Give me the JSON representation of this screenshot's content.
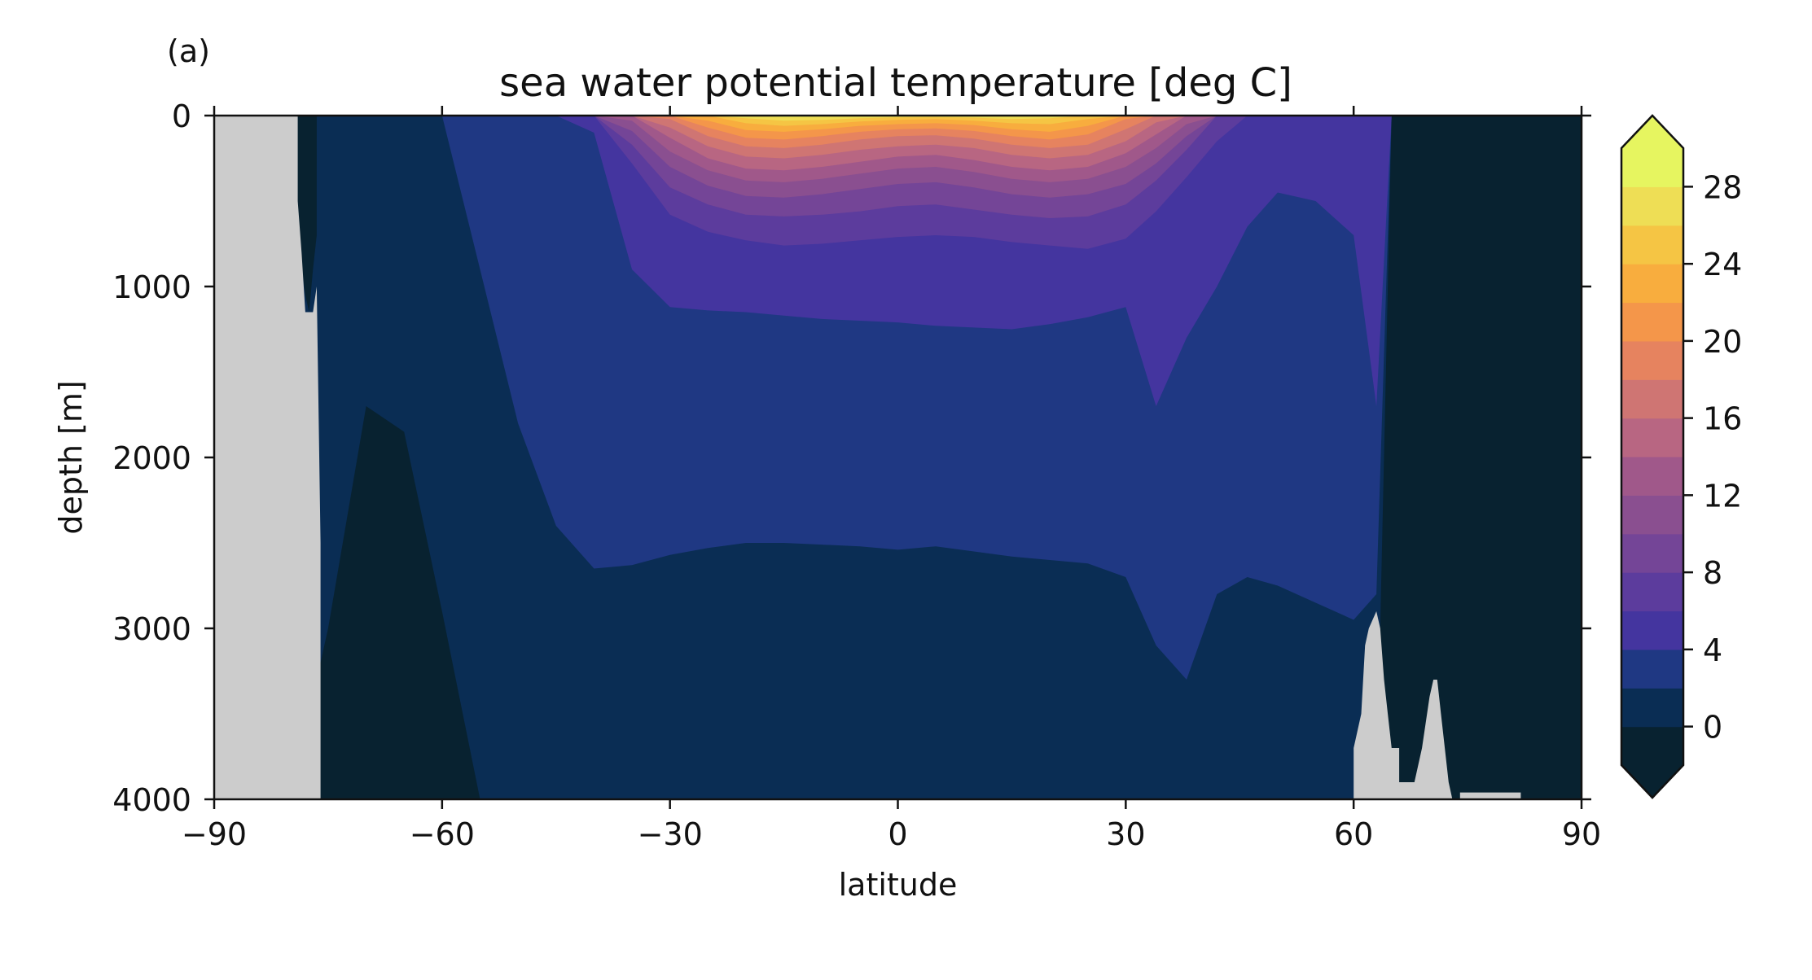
{
  "chart_data": {
    "type": "heatmap",
    "panel_label": "(a)",
    "title": "sea water potential temperature [deg C]",
    "xlabel": "latitude",
    "ylabel": "depth [m]",
    "xlim": [
      -90,
      90
    ],
    "ylim": [
      4000,
      0
    ],
    "x_ticks": [
      -90,
      -60,
      -30,
      0,
      30,
      60,
      90
    ],
    "x_tick_labels": [
      "−90",
      "−60",
      "−30",
      "0",
      "30",
      "60",
      "90"
    ],
    "y_ticks": [
      0,
      1000,
      2000,
      3000,
      4000
    ],
    "y_tick_labels": [
      "0",
      "1000",
      "2000",
      "3000",
      "4000"
    ],
    "colorbar": {
      "levels": [
        -2,
        0,
        2,
        4,
        6,
        8,
        10,
        12,
        14,
        16,
        18,
        20,
        22,
        24,
        26,
        28,
        30
      ],
      "tick_values": [
        0,
        4,
        8,
        12,
        16,
        20,
        24,
        28
      ],
      "tick_labels": [
        "0",
        "4",
        "8",
        "12",
        "16",
        "20",
        "24",
        "28"
      ],
      "extend": "both",
      "under_color": "#082230",
      "over_color": "#e6f560",
      "colors": [
        "#082230",
        "#0a2d54",
        "#1f3883",
        "#44359f",
        "#5c3c9d",
        "#744597",
        "#8a4f90",
        "#a0588a",
        "#b86682",
        "#cf7573",
        "#e6835f",
        "#f4964a",
        "#f8ad3e",
        "#f5c544",
        "#eede55",
        "#e6f560"
      ]
    },
    "land_color": "#cccccc",
    "isotherm_depth_profiles": {
      "lat": [
        -90,
        -80,
        -75,
        -70,
        -65,
        -60,
        -55,
        -50,
        -45,
        -40,
        -35,
        -30,
        -25,
        -20,
        -15,
        -10,
        -5,
        0,
        5,
        10,
        15,
        20,
        25,
        30,
        34,
        38,
        42,
        46,
        50,
        55,
        60,
        63,
        65,
        70,
        75,
        80,
        85,
        90
      ],
      "t0": [
        4000,
        4000,
        3000,
        1700,
        1850,
        2900,
        4000,
        4000,
        4000,
        4000,
        4000,
        4000,
        4000,
        4000,
        4000,
        4000,
        4000,
        4000,
        4000,
        4000,
        4000,
        4000,
        4000,
        4000,
        4000,
        4000,
        4000,
        4000,
        4000,
        4000,
        4000,
        4000,
        0,
        0,
        0,
        0,
        0,
        0
      ],
      "t2": [
        0,
        0,
        0,
        0,
        0,
        0,
        900,
        1800,
        2400,
        2650,
        2630,
        2570,
        2530,
        2500,
        2500,
        2510,
        2520,
        2540,
        2520,
        2550,
        2580,
        2600,
        2620,
        2700,
        3100,
        3300,
        2800,
        2700,
        2750,
        2850,
        2950,
        2800,
        0,
        0,
        0,
        0,
        0,
        0
      ],
      "t4": [
        0,
        0,
        0,
        0,
        0,
        0,
        0,
        0,
        0,
        100,
        900,
        1120,
        1140,
        1150,
        1170,
        1190,
        1200,
        1210,
        1230,
        1240,
        1250,
        1220,
        1180,
        1120,
        1700,
        1300,
        1000,
        650,
        450,
        500,
        700,
        1700,
        0,
        0,
        0,
        0,
        0,
        0
      ],
      "t6": [
        0,
        0,
        0,
        0,
        0,
        0,
        0,
        0,
        0,
        0,
        280,
        580,
        680,
        730,
        760,
        750,
        730,
        710,
        700,
        710,
        740,
        760,
        780,
        720,
        560,
        360,
        150,
        0,
        0,
        0,
        0,
        0,
        0,
        0,
        0,
        0,
        0,
        0
      ],
      "t8": [
        0,
        0,
        0,
        0,
        0,
        0,
        0,
        0,
        0,
        0,
        170,
        420,
        520,
        580,
        590,
        580,
        560,
        530,
        520,
        550,
        580,
        600,
        590,
        520,
        380,
        200,
        0,
        0,
        0,
        0,
        0,
        0,
        0,
        0,
        0,
        0,
        0,
        0
      ],
      "t10": [
        0,
        0,
        0,
        0,
        0,
        0,
        0,
        0,
        0,
        0,
        90,
        300,
        410,
        470,
        480,
        460,
        430,
        400,
        390,
        420,
        460,
        480,
        460,
        400,
        280,
        120,
        0,
        0,
        0,
        0,
        0,
        0,
        0,
        0,
        0,
        0,
        0,
        0
      ],
      "t12": [
        0,
        0,
        0,
        0,
        0,
        0,
        0,
        0,
        0,
        0,
        30,
        210,
        320,
        380,
        390,
        370,
        340,
        310,
        300,
        330,
        370,
        390,
        370,
        300,
        190,
        50,
        0,
        0,
        0,
        0,
        0,
        0,
        0,
        0,
        0,
        0,
        0,
        0
      ],
      "t14": [
        0,
        0,
        0,
        0,
        0,
        0,
        0,
        0,
        0,
        0,
        0,
        130,
        250,
        310,
        320,
        300,
        270,
        240,
        230,
        260,
        300,
        320,
        300,
        220,
        110,
        0,
        0,
        0,
        0,
        0,
        0,
        0,
        0,
        0,
        0,
        0,
        0,
        0
      ],
      "t16": [
        0,
        0,
        0,
        0,
        0,
        0,
        0,
        0,
        0,
        0,
        0,
        70,
        180,
        240,
        250,
        230,
        200,
        180,
        170,
        190,
        230,
        250,
        230,
        150,
        40,
        0,
        0,
        0,
        0,
        0,
        0,
        0,
        0,
        0,
        0,
        0,
        0,
        0
      ],
      "t18": [
        0,
        0,
        0,
        0,
        0,
        0,
        0,
        0,
        0,
        0,
        0,
        20,
        120,
        180,
        190,
        170,
        140,
        120,
        115,
        135,
        170,
        190,
        170,
        80,
        0,
        0,
        0,
        0,
        0,
        0,
        0,
        0,
        0,
        0,
        0,
        0,
        0,
        0
      ],
      "t20": [
        0,
        0,
        0,
        0,
        0,
        0,
        0,
        0,
        0,
        0,
        0,
        0,
        70,
        130,
        140,
        120,
        95,
        80,
        75,
        90,
        120,
        140,
        110,
        20,
        0,
        0,
        0,
        0,
        0,
        0,
        0,
        0,
        0,
        0,
        0,
        0,
        0,
        0
      ],
      "t22": [
        0,
        0,
        0,
        0,
        0,
        0,
        0,
        0,
        0,
        0,
        0,
        0,
        30,
        85,
        95,
        80,
        60,
        50,
        45,
        55,
        80,
        95,
        60,
        0,
        0,
        0,
        0,
        0,
        0,
        0,
        0,
        0,
        0,
        0,
        0,
        0,
        0,
        0
      ],
      "t24": [
        0,
        0,
        0,
        0,
        0,
        0,
        0,
        0,
        0,
        0,
        0,
        0,
        0,
        45,
        60,
        50,
        35,
        25,
        20,
        30,
        45,
        50,
        20,
        0,
        0,
        0,
        0,
        0,
        0,
        0,
        0,
        0,
        0,
        0,
        0,
        0,
        0,
        0
      ],
      "t26": [
        0,
        0,
        0,
        0,
        0,
        0,
        0,
        0,
        0,
        0,
        0,
        0,
        0,
        15,
        30,
        25,
        15,
        10,
        8,
        12,
        20,
        15,
        0,
        0,
        0,
        0,
        0,
        0,
        0,
        0,
        0,
        0,
        0,
        0,
        0,
        0,
        0,
        0
      ],
      "t28": [
        0,
        0,
        0,
        0,
        0,
        0,
        0,
        0,
        0,
        0,
        0,
        0,
        0,
        0,
        8,
        6,
        3,
        2,
        2,
        3,
        5,
        0,
        0,
        0,
        0,
        0,
        0,
        0,
        0,
        0,
        0,
        0,
        0,
        0,
        0,
        0,
        0,
        0
      ]
    },
    "antarctic_shelf_dark": {
      "lat": [
        -80,
        -79,
        -78,
        -77.5,
        -77,
        -76.5
      ],
      "depth": [
        580,
        700,
        1050,
        1150,
        900,
        700
      ]
    },
    "land_regions": [
      {
        "name": "antarctica",
        "lat": [
          -90,
          -79,
          -79,
          -78.5,
          -78,
          -77,
          -76.5,
          -76,
          -76,
          -90
        ],
        "depth": [
          0,
          0,
          500,
          800,
          1150,
          1150,
          1000,
          2500,
          4000,
          4000
        ]
      },
      {
        "name": "greenland-iceland-ridge",
        "lat": [
          60,
          60,
          61,
          61.5,
          62,
          63,
          63.5,
          64,
          64.5,
          65,
          66,
          66,
          67,
          68,
          69,
          70,
          70.5,
          71,
          71.5,
          72,
          72.5,
          73,
          74,
          74
        ],
        "depth": [
          4000,
          3700,
          3500,
          3100,
          3000,
          2900,
          3000,
          3300,
          3500,
          3700,
          3700,
          3900,
          3900,
          3900,
          3700,
          3400,
          3300,
          3300,
          3500,
          3700,
          3900,
          4000,
          4000,
          4000
        ]
      },
      {
        "name": "arctic-sill",
        "lat": [
          74,
          74,
          82,
          82
        ],
        "depth": [
          4000,
          3960,
          3960,
          4000
        ]
      }
    ]
  }
}
